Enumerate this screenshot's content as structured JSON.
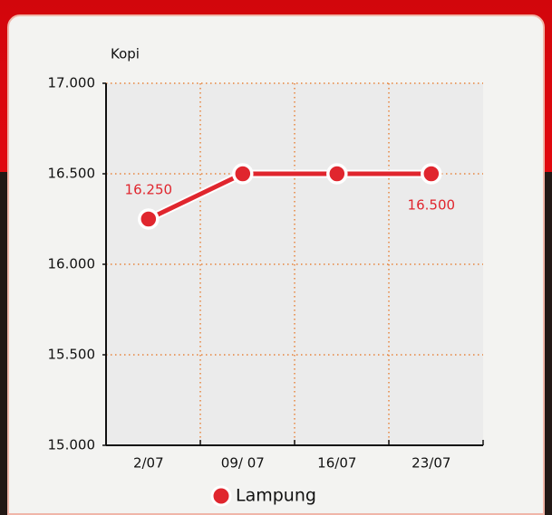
{
  "chart_data": {
    "type": "line",
    "y_label": "Kopi",
    "categories": [
      "2/07",
      "09/ 07",
      "16/07",
      "23/07"
    ],
    "series": [
      {
        "name": "Lampung",
        "color": "#e0262e",
        "values": [
          16250,
          16500,
          16500,
          16500
        ],
        "value_labels": [
          "16.250",
          null,
          null,
          "16.500"
        ]
      }
    ],
    "ylim": [
      15000,
      17000
    ],
    "yticks": [
      {
        "value": 15000,
        "label": "15.000"
      },
      {
        "value": 15500,
        "label": "15.500"
      },
      {
        "value": 16000,
        "label": "16.000"
      },
      {
        "value": 16500,
        "label": "16.500"
      },
      {
        "value": 17000,
        "label": "17.000"
      }
    ],
    "grid": true
  }
}
